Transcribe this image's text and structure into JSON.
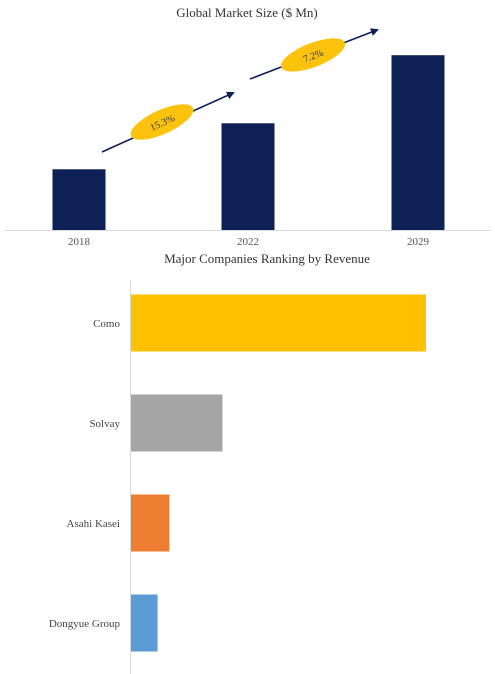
{
  "chart_data": [
    {
      "type": "bar",
      "title": "Global Market Size ($ Mn)",
      "categories": [
        "2018",
        "2022",
        "2029"
      ],
      "values": [
        33,
        58,
        95
      ],
      "ylim": [
        0,
        100
      ],
      "grid": false,
      "colors": {
        "bar": "#0e2157",
        "arrow": "#0e2157",
        "badge": "#fcc30e",
        "axis": "#d9d9d9"
      },
      "growth_labels": [
        {
          "label": "15.3%",
          "from": "2018",
          "to": "2022"
        },
        {
          "label": "7.2%",
          "from": "2022",
          "to": "2029"
        }
      ]
    },
    {
      "type": "bar",
      "orientation": "horizontal",
      "title": "Major Companies Ranking by Revenue",
      "categories": [
        "Como",
        "Solvay",
        "Asahi Kasei",
        "Dongyue Group"
      ],
      "values": [
        100,
        31,
        13,
        9
      ],
      "xlim": [
        0,
        100
      ],
      "grid": false,
      "colors": [
        "#ffc000",
        "#a5a5a5",
        "#ed7d31",
        "#5b9bd5"
      ],
      "axis_color": "#d9d9d9"
    }
  ]
}
